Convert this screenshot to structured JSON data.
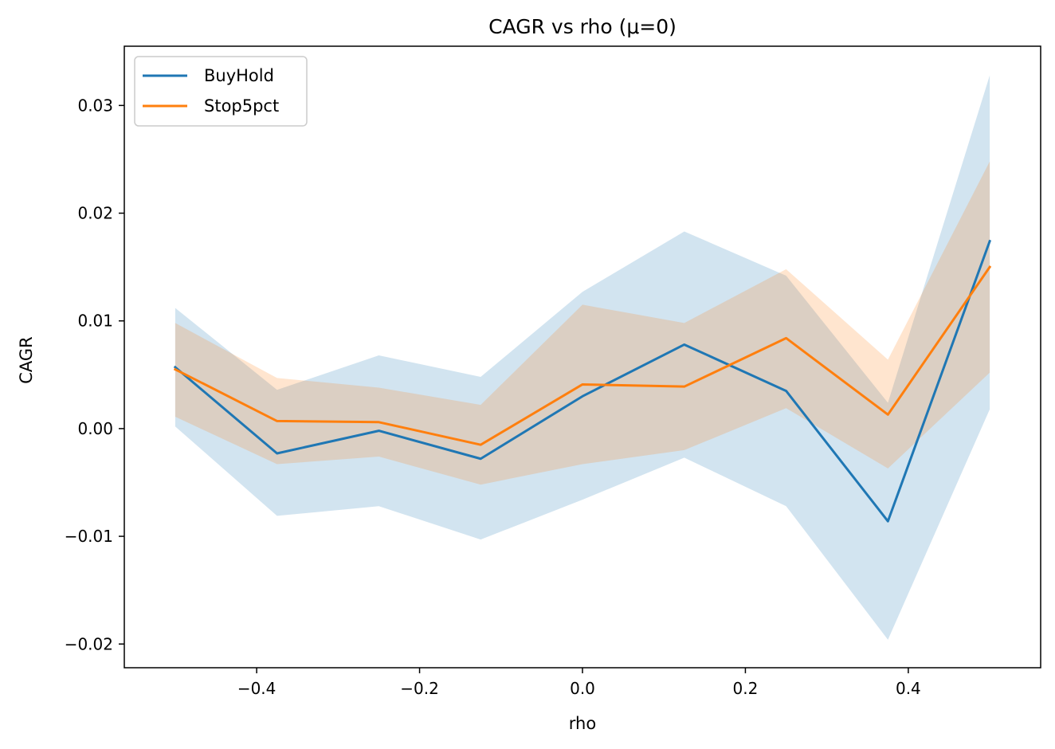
{
  "chart_data": {
    "type": "line",
    "title": "CAGR vs rho (μ=0)",
    "xlabel": "rho",
    "ylabel": "CAGR",
    "x": [
      -0.5,
      -0.375,
      -0.25,
      -0.125,
      0.0,
      0.125,
      0.25,
      0.375,
      0.5
    ],
    "xlim": [
      -0.5625,
      0.5625
    ],
    "ylim": [
      -0.0222,
      0.0355
    ],
    "x_ticks": [
      -0.4,
      -0.2,
      0.0,
      0.2,
      0.4
    ],
    "x_tick_labels": [
      "−0.4",
      "−0.2",
      "0.0",
      "0.2",
      "0.4"
    ],
    "y_ticks": [
      -0.02,
      -0.01,
      0.0,
      0.01,
      0.02,
      0.03
    ],
    "y_tick_labels": [
      "−0.02",
      "−0.01",
      "0.00",
      "0.01",
      "0.02",
      "0.03"
    ],
    "grid": false,
    "legend_position": "upper-left",
    "series": [
      {
        "name": "BuyHold",
        "color": "#1f77b4",
        "values": [
          0.0057,
          -0.0023,
          -0.0002,
          -0.0028,
          0.003,
          0.0078,
          0.0035,
          -0.0086,
          0.0174
        ],
        "band_lower": [
          0.0002,
          -0.0081,
          -0.0072,
          -0.0103,
          -0.0066,
          -0.0027,
          -0.0072,
          -0.0196,
          0.0018
        ],
        "band_upper": [
          0.0112,
          0.0036,
          0.0068,
          0.0048,
          0.0127,
          0.0183,
          0.0142,
          0.0024,
          0.0328
        ]
      },
      {
        "name": "Stop5pct",
        "color": "#ff7f0e",
        "values": [
          0.0055,
          0.0007,
          0.0006,
          -0.0015,
          0.0041,
          0.0039,
          0.0084,
          0.0013,
          0.015
        ],
        "band_lower": [
          0.0011,
          -0.0033,
          -0.0026,
          -0.0052,
          -0.0033,
          -0.002,
          0.0019,
          -0.0037,
          0.0052
        ],
        "band_upper": [
          0.0098,
          0.0047,
          0.0038,
          0.0022,
          0.0115,
          0.0098,
          0.0148,
          0.0064,
          0.0248
        ]
      }
    ]
  }
}
